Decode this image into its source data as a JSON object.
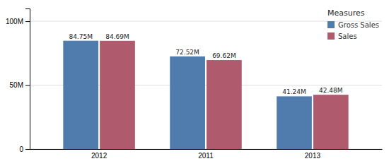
{
  "chart_data": {
    "type": "bar",
    "categories": [
      "2012",
      "2011",
      "2013"
    ],
    "series": [
      {
        "name": "Gross Sales",
        "color": "#4f7cac",
        "values": [
          84.75,
          72.52,
          41.24
        ],
        "value_labels": [
          "84.75M",
          "72.52M",
          "41.24M"
        ]
      },
      {
        "name": "Sales",
        "color": "#b05a6e",
        "values": [
          84.69,
          69.62,
          42.48
        ],
        "value_labels": [
          "84.69M",
          "69.62M",
          "42.48M"
        ]
      }
    ],
    "ylim": [
      0,
      110
    ],
    "yticks": [
      0,
      {
        "value": 50,
        "label": "50M"
      },
      {
        "value": 100,
        "label": "100M"
      }
    ],
    "grid": true,
    "legend": "top-right",
    "legend_title": "Measures",
    "data_labels": true
  }
}
